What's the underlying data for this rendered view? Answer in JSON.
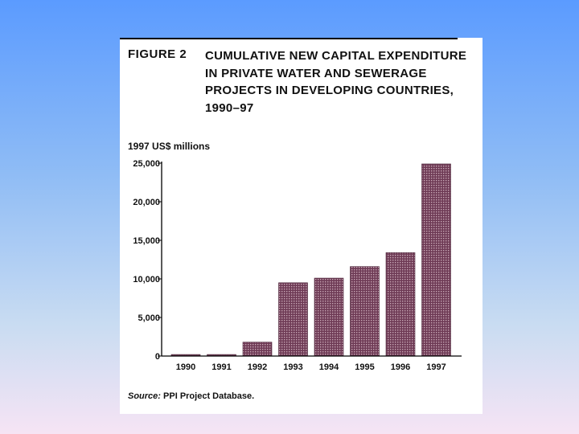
{
  "figure": {
    "number": "FIGURE 2",
    "title": "CUMULATIVE NEW CAPITAL EXPENDITURE IN PRIVATE WATER AND SEWERAGE PROJECTS IN DEVELOPING COUNTRIES, 1990–97",
    "source_label": "Source:",
    "source_text": "PPI Project Database."
  },
  "chart_data": {
    "type": "bar",
    "title": "CUMULATIVE NEW CAPITAL EXPENDITURE IN PRIVATE WATER AND SEWERAGE PROJECTS IN DEVELOPING COUNTRIES, 1990–97",
    "ylabel": "1997 US$ millions",
    "xlabel": "",
    "categories": [
      "1990",
      "1991",
      "1992",
      "1993",
      "1994",
      "1995",
      "1996",
      "1997"
    ],
    "values": [
      200,
      200,
      1800,
      9500,
      10100,
      11600,
      13400,
      24900
    ],
    "ylim": [
      0,
      25000
    ],
    "yticks": [
      0,
      5000,
      10000,
      15000,
      20000,
      25000
    ],
    "ytick_labels": [
      "0",
      "5,000",
      "10,000",
      "15,000",
      "20,000",
      "25,000"
    ],
    "grid": false,
    "bar_color": "#6e3a55"
  }
}
